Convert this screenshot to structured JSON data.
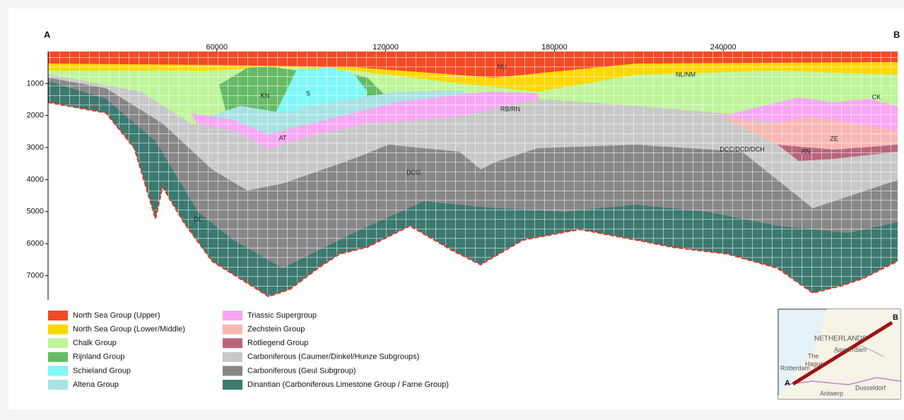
{
  "section": {
    "start_label": "A",
    "end_label": "B",
    "xlim": [
      0,
      302000
    ],
    "xticks": [
      60000,
      120000,
      180000,
      240000
    ],
    "ylim": [
      0,
      7760
    ],
    "yticks": [
      1000,
      2000,
      3000,
      4000,
      5000,
      6000,
      7000
    ],
    "unit_labels": [
      "NU",
      "NL/NM",
      "CK",
      "KN",
      "S",
      "RB/RN",
      "AT",
      "ZE",
      "DCC/DCD/DCH",
      "RN",
      "DCG",
      "DL"
    ]
  },
  "legend": {
    "items": [
      {
        "name": "North Sea Group (Upper)",
        "color": "#f24a25"
      },
      {
        "name": "North Sea Group (Lower/Middle)",
        "color": "#ffd700"
      },
      {
        "name": "Chalk Group",
        "color": "#bff59a"
      },
      {
        "name": "Rijnland Group",
        "color": "#66bb66"
      },
      {
        "name": "Schieland Group",
        "color": "#7ff7f7"
      },
      {
        "name": "Altena Group",
        "color": "#a8e2e2"
      },
      {
        "name": "Triassic Supergroup",
        "color": "#f7a6f4"
      },
      {
        "name": "Zechstein Group",
        "color": "#f7b7b3"
      },
      {
        "name": "Rotliegend Group",
        "color": "#b9667a"
      },
      {
        "name": "Carboniferous (Caumer/Dinkel/Hunze Subgroups)",
        "color": "#c8c8c8"
      },
      {
        "name": "Carboniferous (Geul Subgroup)",
        "color": "#878787"
      },
      {
        "name": "Dinantian (Carboniferous Limestone Group / Farne Group)",
        "color": "#3c7a70"
      }
    ]
  },
  "map": {
    "labels": [
      "NETHERLANDS",
      "Amsterdam",
      "The",
      "Hague",
      "Rotterdam",
      "Antwerp",
      "Dusseldorf"
    ],
    "start_label": "A",
    "end_label": "B"
  }
}
